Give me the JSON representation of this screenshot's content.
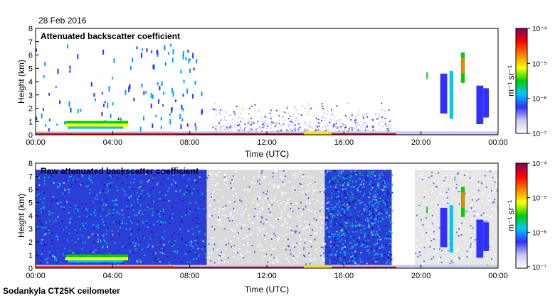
{
  "header": {
    "date": "28 Feb 2016"
  },
  "footer": {
    "instrument": "Sodankyla CT25K ceilometer"
  },
  "colorbar": {
    "stops": [
      "#ffffff",
      "#c8c8f0",
      "#3030ff",
      "#00c8ff",
      "#00d000",
      "#ffff00",
      "#ff8000",
      "#ff0000",
      "#800060"
    ]
  },
  "chart_data": [
    {
      "type": "heatmap",
      "title": "Attenuated backscatter coefficient",
      "xlabel": "Time (UTC)",
      "ylabel": "Height (km)",
      "xlim": [
        "00:00",
        "00:00"
      ],
      "xticks": [
        "00:00",
        "04:00",
        "08:00",
        "12:00",
        "16:00",
        "20:00",
        "00:00"
      ],
      "ylim": [
        0,
        8
      ],
      "yticks": [
        "0",
        "1",
        "2",
        "3",
        "4",
        "5",
        "6",
        "7",
        "8"
      ],
      "colorbar": {
        "scale": "log",
        "min_label": "10⁻⁷",
        "max_label": "10⁻⁴",
        "ticks": [
          "10⁻⁴",
          "10⁻⁵",
          "10⁻⁶",
          "10⁻⁷"
        ],
        "unit": "m⁻¹ sr⁻¹"
      }
    },
    {
      "type": "heatmap",
      "title": "Raw attenuated backscatter coefficient",
      "xlabel": "Time (UTC)",
      "ylabel": "Height (km)",
      "xlim": [
        "00:00",
        "00:00"
      ],
      "xticks": [
        "00:00",
        "04:00",
        "08:00",
        "12:00",
        "16:00",
        "20:00",
        "00:00"
      ],
      "ylim": [
        0,
        8
      ],
      "yticks": [
        "0",
        "1",
        "2",
        "3",
        "4",
        "5",
        "6",
        "7",
        "8"
      ],
      "colorbar": {
        "scale": "log",
        "min_label": "10⁻⁷",
        "max_label": "10⁻⁴",
        "ticks": [
          "10⁻⁴",
          "10⁻⁵",
          "10⁻⁶",
          "10⁻⁷"
        ],
        "unit": "m⁻¹ sr⁻¹"
      }
    }
  ]
}
